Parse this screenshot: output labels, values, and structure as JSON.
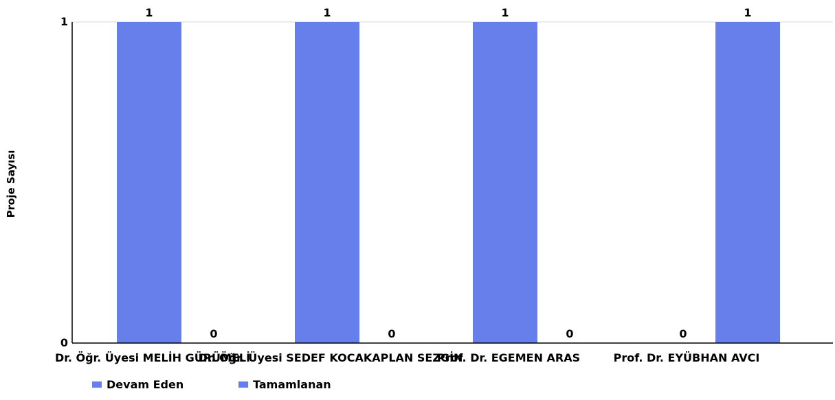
{
  "chart_data": {
    "type": "bar",
    "title": "",
    "xlabel": "",
    "ylabel": "Proje Sayısı",
    "ylim": [
      0,
      1
    ],
    "yticks": [
      "0",
      "1"
    ],
    "grid": false,
    "legend_position": "bottom-left",
    "categories": [
      "Dr. Öğr. Üyesi MELİH GÜRÜMELİ",
      "Dr. Öğr. Üyesi SEDEF KOCAKAPLAN SEZGİN",
      "Prof. Dr. EGEMEN ARAS",
      "Prof. Dr. EYÜBHAN AVCI"
    ],
    "series": [
      {
        "name": "Devam Eden",
        "values": [
          1,
          1,
          1,
          0
        ],
        "color": "#677fea"
      },
      {
        "name": "Tamamlanan",
        "values": [
          0,
          0,
          0,
          1
        ],
        "color": "#677fea"
      }
    ]
  }
}
